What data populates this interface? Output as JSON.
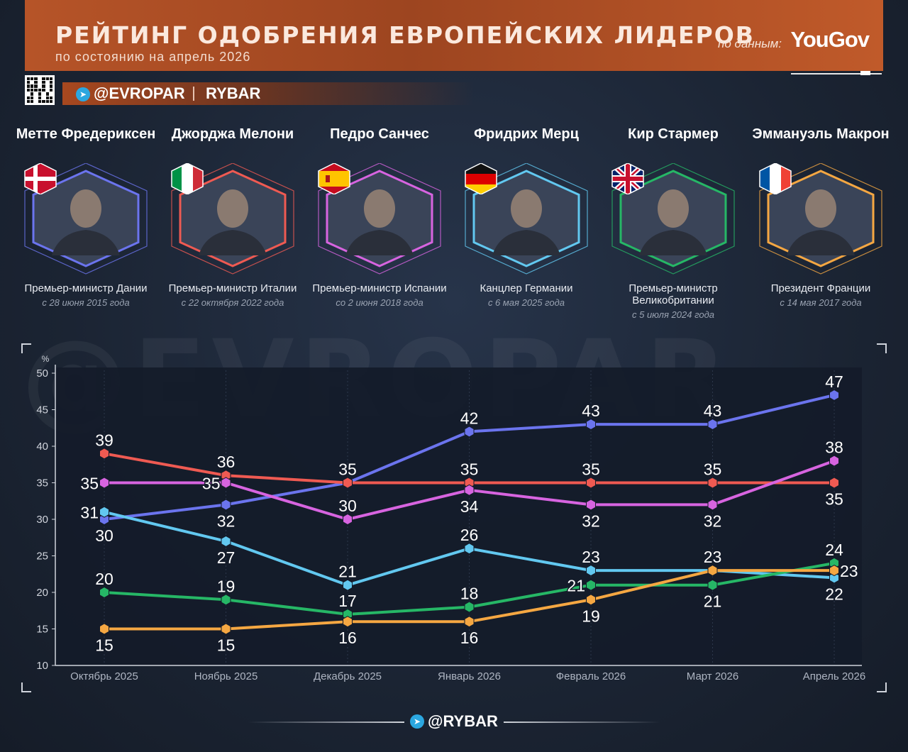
{
  "header": {
    "title": "РЕЙТИНГ ОДОБРЕНИЯ ЕВРОПЕЙСКИХ ЛИДЕРОВ",
    "subtitle": "по состоянию на апрель 2026",
    "source_label": "по данным:",
    "source_brand": "YouGov"
  },
  "brand": {
    "telegram": "@EVROPAR",
    "name": "RYBAR",
    "icon": "telegram-icon"
  },
  "watermark": "@EVROPAR",
  "footer": {
    "brand": "@RYBAR",
    "icon": "telegram-icon"
  },
  "leaders": [
    {
      "name": "Метте Фредериксен",
      "role": "Премьер-министр Дании",
      "since": "с 28 июня 2015 года",
      "color": "#6b74ee",
      "flag": "denmark"
    },
    {
      "name": "Джорджа Мелони",
      "role": "Премьер-министр Италии",
      "since": "с 22 октября 2022 года",
      "color": "#ef5a52",
      "flag": "italy"
    },
    {
      "name": "Педро Санчес",
      "role": "Премьер-министр Испании",
      "since": "со 2 июня 2018 года",
      "color": "#d764e0",
      "flag": "spain"
    },
    {
      "name": "Фридрих Мерц",
      "role": "Канцлер Германии",
      "since": "с 6 мая 2025 года",
      "color": "#62c8f0",
      "flag": "germany"
    },
    {
      "name": "Кир Стармер",
      "role": "Премьер-министр Великобритании",
      "since": "с 5 июля 2024 года",
      "color": "#26b766",
      "flag": "uk"
    },
    {
      "name": "Эммануэль Макрон",
      "role": "Президент Франции",
      "since": "с 14 мая 2017 года",
      "color": "#f5a742",
      "flag": "france"
    }
  ],
  "chart_data": {
    "type": "line",
    "ylabel": "%",
    "ylim": [
      10,
      50
    ],
    "yticks": [
      10,
      15,
      20,
      25,
      30,
      35,
      40,
      45,
      50
    ],
    "categories": [
      "Октябрь 2025",
      "Ноябрь 2025",
      "Декабрь 2025",
      "Январь 2026",
      "Февраль 2026",
      "Март 2026",
      "Апрель 2026"
    ],
    "grid": "vertical",
    "series": [
      {
        "name": "Метте Фредериксен",
        "color": "#6b74ee",
        "values": [
          30,
          32,
          35,
          42,
          43,
          43,
          47
        ],
        "label_pos": [
          "below",
          "below",
          "above",
          "above",
          "above",
          "above",
          "above"
        ]
      },
      {
        "name": "Джорджа Мелони",
        "color": "#ef5a52",
        "values": [
          39,
          36,
          35,
          35,
          35,
          35,
          35
        ],
        "label_pos": [
          "above",
          "above",
          "above",
          "above",
          "above",
          "above",
          "below"
        ]
      },
      {
        "name": "Педро Санчес",
        "color": "#d764e0",
        "values": [
          35,
          35,
          30,
          34,
          32,
          32,
          38
        ],
        "label_pos": [
          "left",
          "left",
          "above",
          "below",
          "below",
          "below",
          "above"
        ]
      },
      {
        "name": "Фридрих Мерц",
        "color": "#62c8f0",
        "values": [
          31,
          27,
          21,
          26,
          23,
          23,
          22
        ],
        "label_pos": [
          "left",
          "below",
          "above",
          "above",
          "above",
          "above",
          "below"
        ]
      },
      {
        "name": "Кир Стармер",
        "color": "#26b766",
        "values": [
          20,
          19,
          17,
          18,
          21,
          21,
          24
        ],
        "label_pos": [
          "above",
          "above",
          "above",
          "above",
          "left",
          "below",
          "above"
        ]
      },
      {
        "name": "Эммануэль Макрон",
        "color": "#f5a742",
        "values": [
          15,
          15,
          16,
          16,
          19,
          23,
          23
        ],
        "label_pos": [
          "below",
          "below",
          "below",
          "below",
          "below",
          "none",
          "right"
        ]
      }
    ]
  }
}
